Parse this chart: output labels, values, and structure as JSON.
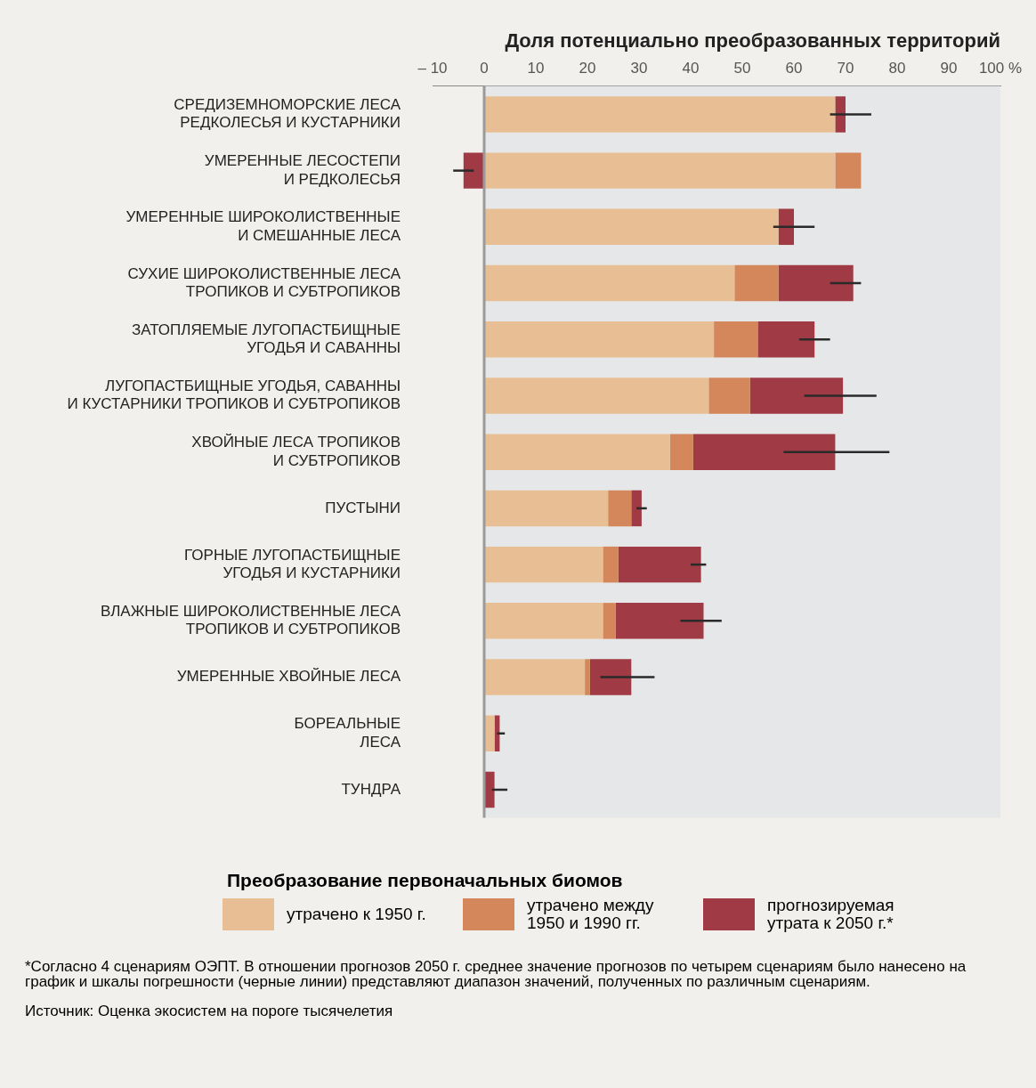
{
  "chart_data": {
    "type": "bar",
    "orientation": "horizontal",
    "stacked": true,
    "xlabel": "Доля потенциально преобразованных территорий",
    "legend_title": "Преобразование первоначальных биомов",
    "categories": [
      "СРЕДИЗЕМНОМОРСКИЕ ЛЕСА\nРЕДКОЛЕСЬЯ И КУСТАРНИКИ",
      "УМЕРЕННЫЕ ЛЕСОСТЕПИ\nИ РЕДКОЛЕСЬЯ",
      "УМЕРЕННЫЕ ШИРОКОЛИСТВЕННЫЕ\nИ СМЕШАННЫЕ ЛЕСА",
      "СУХИЕ ШИРОКОЛИСТВЕННЫЕ ЛЕСА\nТРОПИКОВ И СУБТРОПИКОВ",
      "ЗАТОПЛЯЕМЫЕ ЛУГОПАСТБИЩНЫЕ\nУГОДЬЯ И САВАННЫ",
      "ЛУГОПАСТБИЩНЫЕ УГОДЬЯ, САВАННЫ\nИ КУСТАРНИКИ ТРОПИКОВ И СУБТРОПИКОВ",
      "ХВОЙНЫЕ ЛЕСА ТРОПИКОВ\nИ СУБТРОПИКОВ",
      "ПУСТЫНИ",
      "ГОРНЫЕ ЛУГОПАСТБИЩНЫЕ\nУГОДЬЯ И КУСТАРНИКИ",
      "ВЛАЖНЫЕ ШИРОКОЛИСТВЕННЫЕ ЛЕСА\nТРОПИКОВ И СУБТРОПИКОВ",
      "УМЕРЕННЫЕ ХВОЙНЫЕ ЛЕСА",
      "БОРЕАЛЬНЫЕ\nЛЕСА",
      "ТУНДРА"
    ],
    "series": [
      {
        "name": "утрачено к 1950 г.",
        "color": "#e8bf94",
        "values": [
          68,
          68,
          57,
          48.5,
          44.5,
          43.5,
          36,
          24,
          23,
          23,
          19.5,
          2,
          0
        ]
      },
      {
        "name": "утрачено между 1950 и 1990 гг.",
        "color": "#d4875a",
        "values": [
          0,
          5,
          0,
          8.5,
          8.5,
          8,
          4.5,
          4.5,
          3,
          2.5,
          1,
          0,
          0
        ]
      },
      {
        "name": "прогнозируемая утрата к 2050 г.*",
        "color": "#a03a44",
        "values": [
          2,
          -4,
          3,
          14.5,
          11,
          18,
          27.5,
          2,
          16,
          17,
          8,
          1,
          2
        ],
        "errors": [
          [
            67,
            75
          ],
          [
            -6,
            -2
          ],
          [
            56,
            64
          ],
          [
            67,
            73
          ],
          [
            61,
            67
          ],
          [
            62,
            76
          ],
          [
            58,
            78.5
          ],
          [
            29.5,
            31.5
          ],
          [
            40,
            43
          ],
          [
            38,
            46
          ],
          [
            22.5,
            33
          ],
          [
            2.5,
            4
          ],
          [
            1.5,
            4.5
          ]
        ]
      }
    ],
    "xlim": [
      -10,
      100
    ],
    "xticks": [
      {
        "value": -10,
        "label": "– 10"
      },
      0,
      10,
      20,
      30,
      40,
      50,
      60,
      70,
      80,
      90,
      {
        "value": 100,
        "label": "100 %"
      }
    ],
    "ref_lines": [
      {
        "axis": "x",
        "value": 0,
        "color": "#9a9a9a"
      }
    ],
    "bands": [
      {
        "axis": "x",
        "from": 0,
        "to": 100,
        "color": "#e6e7e8"
      }
    ],
    "grid": false,
    "legend": "bottom",
    "annotations": [
      "*Согласно 4 сценариям ОЭПТ. В отношении прогнозов 2050 г. среднее значение прогнозов по четырем сценариям было нанесено на график и шкалы погрешности (черные линии) представляют диапазон значений, полученных по различным сценариям.",
      "Источник: Оценка экосистем на пороге тысячелетия"
    ]
  }
}
